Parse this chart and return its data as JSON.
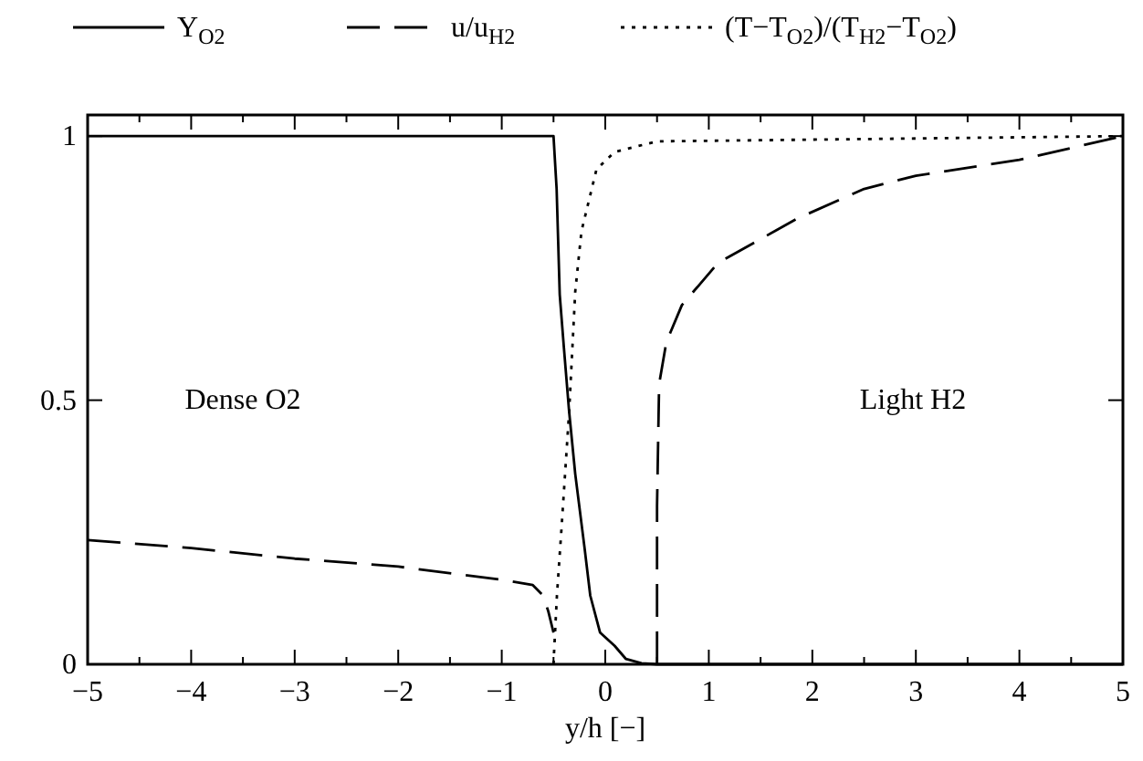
{
  "chart_data": {
    "type": "line",
    "xlabel": "y/h [−]",
    "xlim": [
      -5,
      5
    ],
    "ylim": [
      0,
      1.04
    ],
    "xticks": [
      -5,
      {
        "value": -4.5,
        "label": null
      },
      -4,
      {
        "value": -3.5,
        "label": null
      },
      -3,
      {
        "value": -2.5,
        "label": null
      },
      -2,
      {
        "value": -1.5,
        "label": null
      },
      -1,
      {
        "value": -0.5,
        "label": null
      },
      0,
      {
        "value": 0.5,
        "label": null
      },
      1,
      {
        "value": 1.5,
        "label": null
      },
      2,
      {
        "value": 2.5,
        "label": null
      },
      3,
      {
        "value": 3.5,
        "label": null
      },
      4,
      {
        "value": 4.5,
        "label": null
      },
      5
    ],
    "yticks": [
      0,
      0.5,
      1
    ],
    "grid": false,
    "legend": "top",
    "series": [
      {
        "name": "Y$_{O2}$",
        "color": "#000000",
        "line_style": "solid",
        "x": [
          -5,
          -0.5,
          -0.47,
          -0.44,
          -0.4,
          -0.35,
          -0.29,
          -0.2,
          -0.145,
          -0.05,
          0.09,
          0.2,
          0.35,
          0.5,
          5
        ],
        "values": [
          1,
          1,
          0.9,
          0.7,
          0.6,
          0.48,
          0.36,
          0.22,
          0.13,
          0.06,
          0.035,
          0.01,
          0.002,
          0,
          0
        ]
      },
      {
        "name": "u/u$_{H2}$",
        "color": "#000000",
        "line_style": "dashed",
        "x": [
          -5,
          -4,
          -3,
          -2,
          -1,
          -0.7,
          -0.6,
          -0.55,
          -0.5,
          0,
          0.5,
          0.5,
          0.52,
          0.59,
          0.74,
          1.09,
          1.855,
          2.5,
          3,
          4,
          5
        ],
        "values": [
          0.235,
          0.22,
          0.2,
          0.185,
          0.16,
          0.15,
          0.13,
          0.1,
          0.06,
          null,
          0,
          0.3,
          0.53,
          0.61,
          0.68,
          0.76,
          0.844,
          0.9,
          0.925,
          0.955,
          1
        ]
      },
      {
        "name": "(T−T$_{O2}$)/(T$_{H2}$−T$_{O2}$)",
        "color": "#000000",
        "line_style": "dotted",
        "x": [
          -0.5,
          -0.497,
          -0.467,
          -0.427,
          -0.35,
          -0.29,
          -0.23,
          -0.085,
          0.09,
          0.5,
          5
        ],
        "values": [
          0,
          0.014,
          0.13,
          0.245,
          0.475,
          0.706,
          0.82,
          0.937,
          0.97,
          0.99,
          1
        ]
      }
    ],
    "annotations": [
      "Dense O2",
      "Light H2"
    ]
  }
}
